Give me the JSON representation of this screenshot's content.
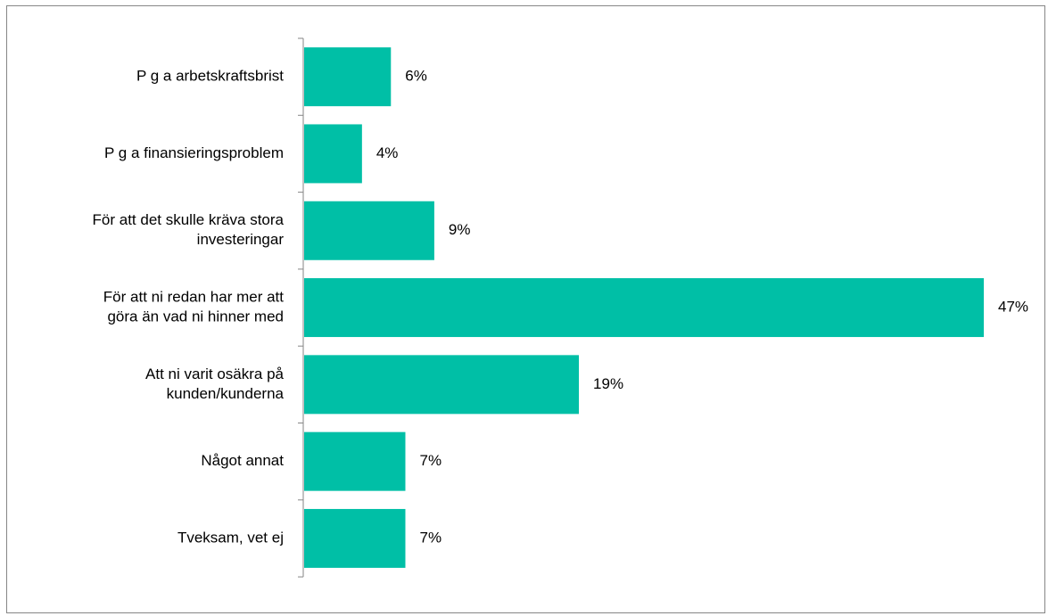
{
  "chart_data": {
    "type": "bar",
    "orientation": "horizontal",
    "categories": [
      [
        "P g a arbetskraftsbrist"
      ],
      [
        "P g a finansieringsproblem"
      ],
      [
        "För att det skulle kräva stora",
        "investeringar"
      ],
      [
        "För att ni redan har mer att",
        "göra än vad ni hinner med"
      ],
      [
        "Att ni varit osäkra på",
        "kunden/kunderna"
      ],
      [
        "Något annat"
      ],
      [
        "Tveksam, vet ej"
      ]
    ],
    "values": [
      6,
      4,
      9,
      47,
      19,
      7,
      7
    ],
    "value_labels": [
      "6%",
      "4%",
      "9%",
      "47%",
      "19%",
      "7%",
      "7%"
    ],
    "xlim": [
      0,
      50
    ],
    "bar_color": "#00BFA6",
    "axis_color": "#868686",
    "grid": false,
    "legend": "none"
  }
}
